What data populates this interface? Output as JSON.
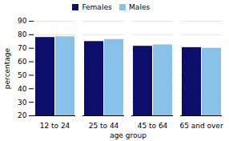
{
  "chart_data": {
    "type": "bar",
    "categories": [
      "12 to 24",
      "25 to 44",
      "45 to 64",
      "65 and over"
    ],
    "series": [
      {
        "name": "Females",
        "color": "#0d0d6b",
        "values": [
          78,
          75,
          71.5,
          70.5
        ]
      },
      {
        "name": "Males",
        "color": "#87c0e8",
        "values": [
          78.5,
          76.5,
          72.5,
          70
        ]
      }
    ],
    "xlabel": "age group",
    "ylabel": "percentage",
    "ylim": [
      20,
      90
    ],
    "yticks": [
      20,
      30,
      40,
      50,
      60,
      70,
      80,
      90
    ],
    "grid": true,
    "legend": "upper center"
  }
}
